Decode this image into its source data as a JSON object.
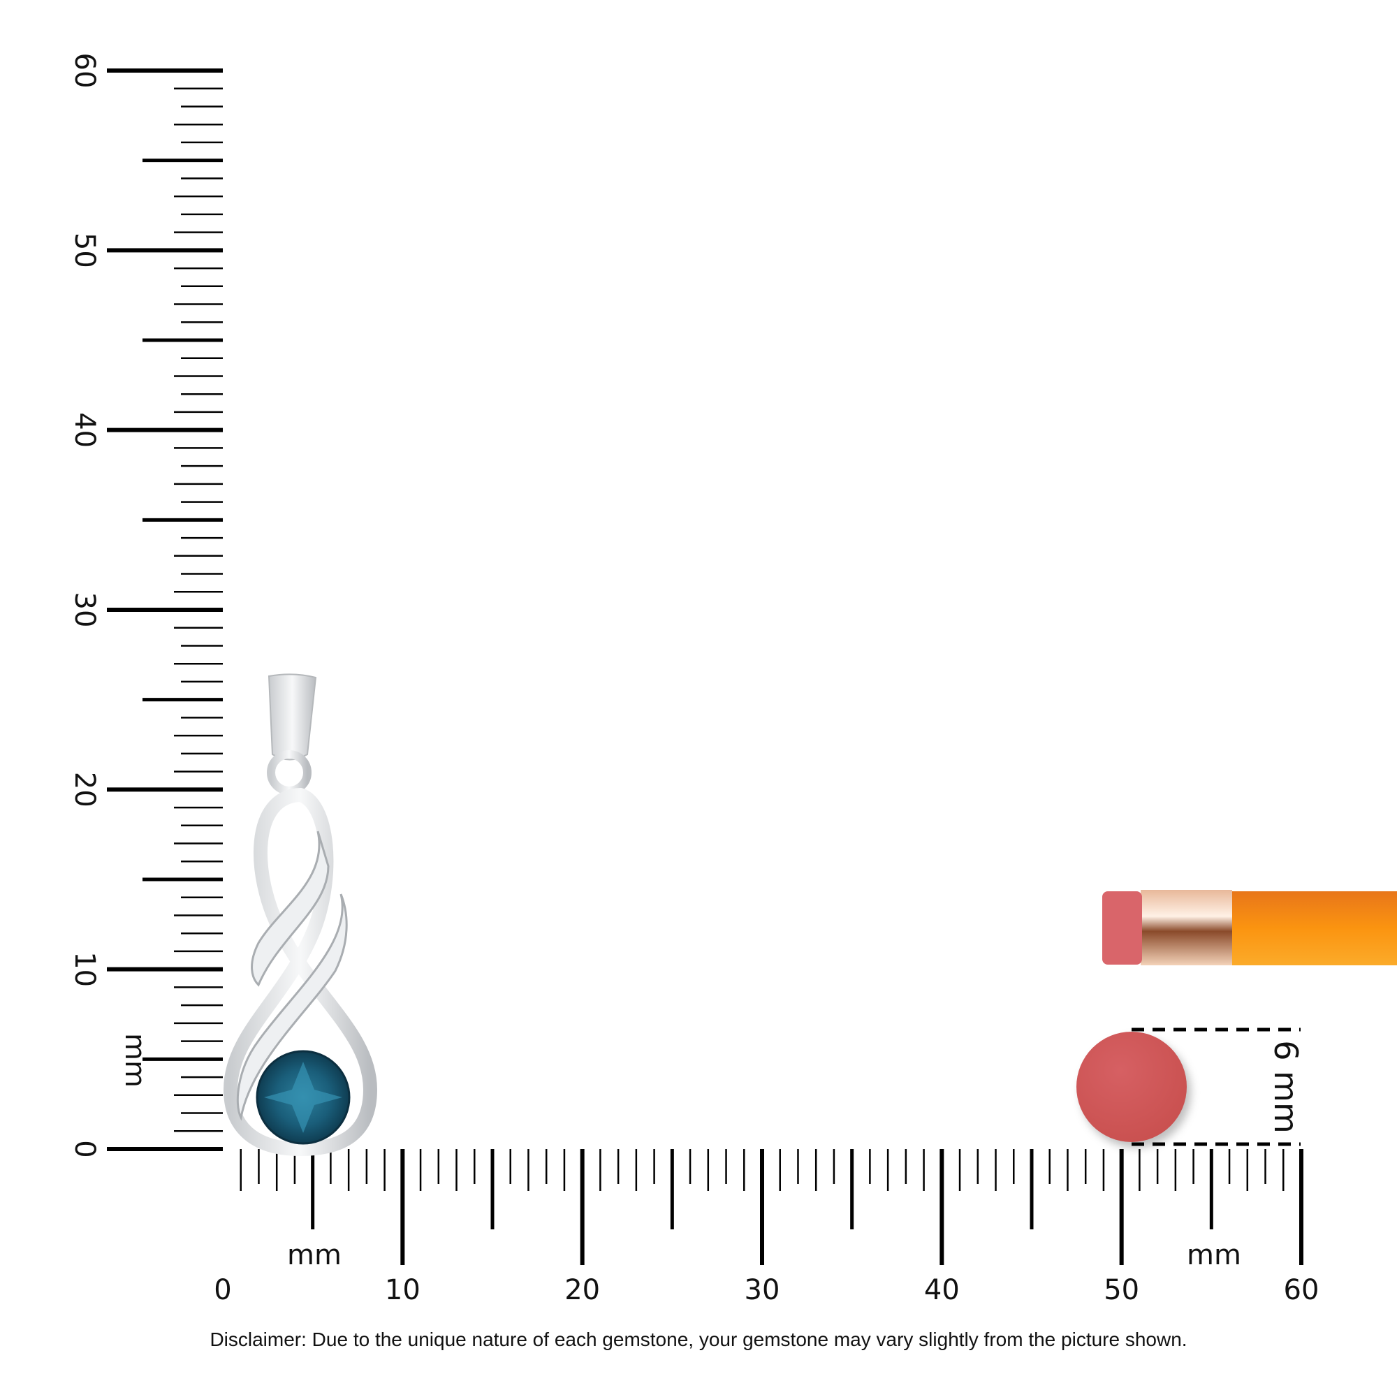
{
  "ruler": {
    "unit": "mm",
    "range": [
      0,
      60
    ],
    "labels": [
      "0",
      "10",
      "20",
      "30",
      "40",
      "50",
      "60"
    ],
    "vertical_unit_label": "mm",
    "horizontal_unit_label_left": "mm",
    "horizontal_unit_label_right": "mm"
  },
  "reference": {
    "circle_size_label": "6 mm",
    "circle_color": "#d1585a",
    "pencil_body_color": "#f7901e",
    "eraser_color": "#d9656a"
  },
  "pendant": {
    "gem_color": "#1f6b86",
    "metal_color": "#e4e6e8"
  },
  "disclaimer": "Disclaimer: Due to the unique nature of each gemstone, your gemstone may vary slightly from the picture shown."
}
